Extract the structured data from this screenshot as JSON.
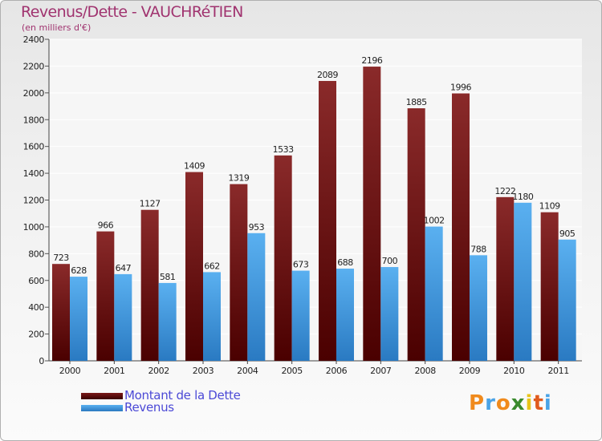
{
  "chart_data": {
    "type": "bar",
    "title": "Revenus/Dette - VAUCHRéTIEN",
    "subtitle": "(en milliers d'€)",
    "categories": [
      "2000",
      "2001",
      "2002",
      "2003",
      "2004",
      "2005",
      "2006",
      "2007",
      "2008",
      "2009",
      "2010",
      "2011"
    ],
    "series": [
      {
        "name": "Montant de la Dette",
        "color": "#7a1a1a",
        "values": [
          723,
          966,
          1127,
          1409,
          1319,
          1533,
          2089,
          2196,
          1885,
          1996,
          1222,
          1109
        ]
      },
      {
        "name": "Revenus",
        "color": "#4aa3e6",
        "values": [
          628,
          647,
          581,
          662,
          953,
          673,
          688,
          700,
          1002,
          788,
          1180,
          905
        ]
      }
    ],
    "ylim": [
      0,
      2400
    ],
    "ytick_step": 200,
    "yticks": [
      "0",
      "200",
      "400",
      "600",
      "800",
      "1000",
      "1200",
      "1400",
      "1600",
      "1800",
      "2000",
      "2200",
      "2400"
    ],
    "grid": true,
    "legend_position": "bottom-left"
  },
  "logo": {
    "letters": [
      "P",
      "r",
      "o",
      "x",
      "i",
      "t",
      "i"
    ],
    "colors": [
      "#f08a1c",
      "#4aa3e6",
      "#f08a1c",
      "#3a8a2e",
      "#e8c41a",
      "#e05a1c",
      "#4aa3e6"
    ]
  }
}
